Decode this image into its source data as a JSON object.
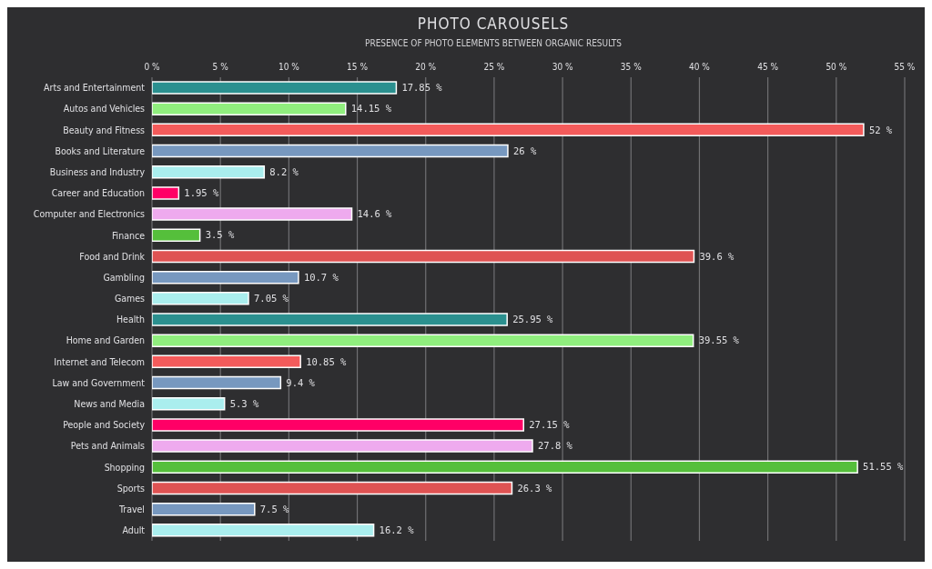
{
  "chart_data": {
    "type": "bar",
    "orientation": "horizontal",
    "title": "PHOTO CAROUSELS",
    "subtitle": "PRESENCE OF PHOTO ELEMENTS BETWEEN ORGANIC RESULTS",
    "categories": [
      "Arts and Entertainment",
      "Autos and Vehicles",
      "Beauty and Fitness",
      "Books and Literature",
      "Business and Industry",
      "Career and Education",
      "Computer and Electronics",
      "Finance",
      "Food and Drink",
      "Gambling",
      "Games",
      "Health",
      "Home and Garden",
      "Internet and Telecom",
      "Law and Government",
      "News and Media",
      "People and Society",
      "Pets and Animals",
      "Shopping",
      "Sports",
      "Travel",
      "Adult"
    ],
    "values": [
      17.85,
      14.15,
      52,
      26,
      8.2,
      1.95,
      14.6,
      3.5,
      39.6,
      10.7,
      7.05,
      25.95,
      39.55,
      10.85,
      9.4,
      5.3,
      27.15,
      27.8,
      51.55,
      26.3,
      7.5,
      16.2
    ],
    "value_labels": [
      "17.85 %",
      "14.15 %",
      "52 %",
      "26 %",
      "8.2 %",
      "1.95 %",
      "14.6 %",
      "3.5 %",
      "39.6 %",
      "10.7 %",
      "7.05 %",
      "25.95 %",
      "39.55 %",
      "10.85 %",
      "9.4 %",
      "5.3 %",
      "27.15 %",
      "27.8 %",
      "51.55 %",
      "26.3 %",
      "7.5 %",
      "16.2 %"
    ],
    "colors": [
      "#2b908f",
      "#90ee7e",
      "#f45b5b",
      "#7798bf",
      "#aaeeee",
      "#ff0066",
      "#eeaaee",
      "#55bf3b",
      "#df5353",
      "#7798bf",
      "#aaeeee",
      "#2b908f",
      "#90ee7e",
      "#f45b5b",
      "#7798bf",
      "#aaeeee",
      "#ff0066",
      "#eeaaee",
      "#55bf3b",
      "#df5353",
      "#7798bf",
      "#aaeeee"
    ],
    "xlim": [
      0,
      55
    ],
    "xticks": [
      {
        "value": 0,
        "label": "0 %"
      },
      {
        "value": 5,
        "label": "5 %"
      },
      {
        "value": 10,
        "label": "10 %"
      },
      {
        "value": 15,
        "label": "15 %"
      },
      {
        "value": 20,
        "label": "20 %"
      },
      {
        "value": 25,
        "label": "25 %"
      },
      {
        "value": 30,
        "label": "30 %"
      },
      {
        "value": 35,
        "label": "35 %"
      },
      {
        "value": 40,
        "label": "40 %"
      },
      {
        "value": 45,
        "label": "45 %"
      },
      {
        "value": 50,
        "label": "50 %"
      },
      {
        "value": 55,
        "label": "55 %"
      }
    ],
    "grid": "x"
  }
}
